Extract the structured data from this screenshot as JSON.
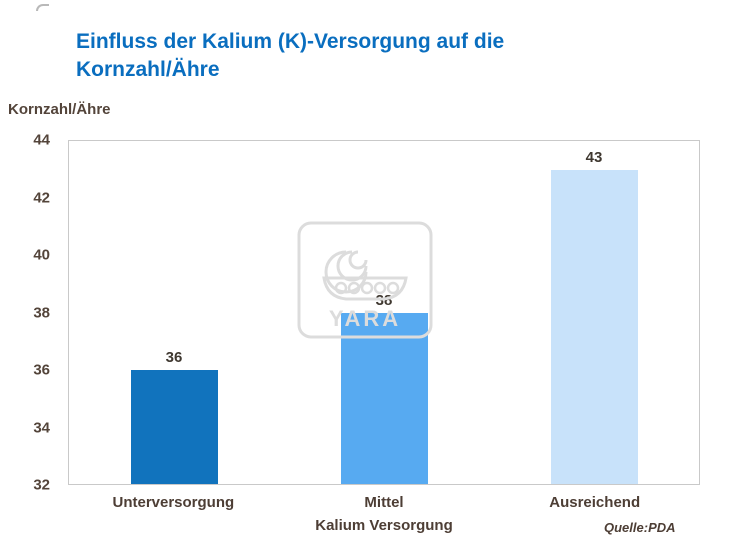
{
  "slide": {
    "watermark_text": "YARA",
    "corner_mark": "slide-corner-mark"
  },
  "chart_data": {
    "type": "bar",
    "title": "Einfluss der Kalium (K)-Versorgung auf die Kornzahl/Ähre",
    "categories": [
      "Unterversorgung",
      "Mittel",
      "Ausreichend"
    ],
    "values": [
      36,
      38,
      43
    ],
    "bar_colors": [
      "#1173bd",
      "#57aaf1",
      "#c8e2fa"
    ],
    "ylabel": "Kornzahl/Ähre",
    "xlabel": "Kalium Versorgung",
    "ylim": [
      32,
      44
    ],
    "yticks": [
      44,
      42,
      40,
      38,
      36,
      34,
      32
    ],
    "grid": false,
    "legend": false,
    "source": "Quelle:PDA"
  },
  "colors": {
    "title": "#0a6ebf",
    "axis_text": "#53443a",
    "category_text": "#4d3e35",
    "plot_border": "#c9c9c9",
    "watermark": "#dcdcdc"
  }
}
